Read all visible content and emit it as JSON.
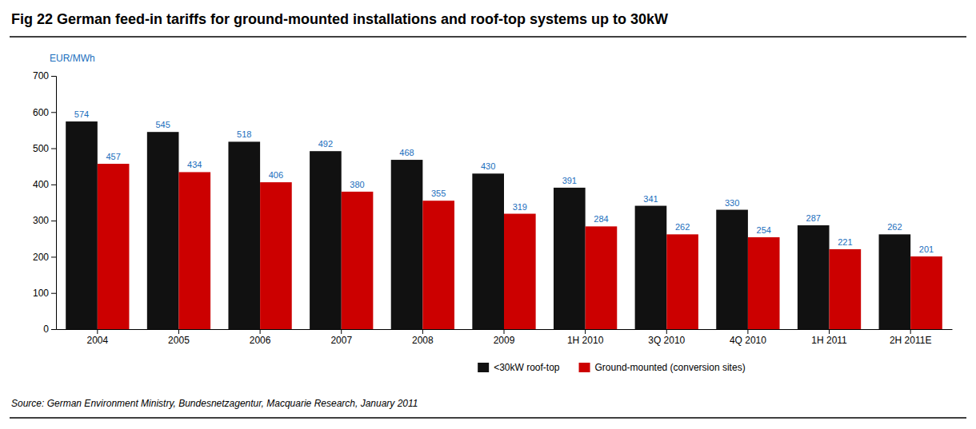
{
  "chart_data": {
    "type": "bar",
    "title": "Fig 22 German feed-in tariffs for ground-mounted installations and roof-top systems up to 30kW",
    "ylabel": "EUR/MWh",
    "annotations": [
      "Source: German Environment Ministry, Bundesnetzagentur, Macquarie Research, January 2011"
    ],
    "categories": [
      "2004",
      "2005",
      "2006",
      "2007",
      "2008",
      "2009",
      "1H 2010",
      "3Q 2010",
      "4Q 2010",
      "1H 2011",
      "2H 2011E"
    ],
    "series": [
      {
        "name": "<30kW roof-top",
        "color": "#111111",
        "values": [
          574,
          545,
          518,
          492,
          468,
          430,
          391,
          341,
          330,
          287,
          262
        ]
      },
      {
        "name": "Ground-mounted (conversion sites)",
        "color": "#cc0000",
        "values": [
          457,
          434,
          406,
          380,
          355,
          319,
          284,
          262,
          254,
          221,
          201
        ]
      }
    ],
    "ylim": [
      0,
      700
    ],
    "yticks": [
      0,
      100,
      200,
      300,
      400,
      500,
      600,
      700
    ],
    "data_labels": true,
    "grid": false,
    "legend": "bottom"
  }
}
